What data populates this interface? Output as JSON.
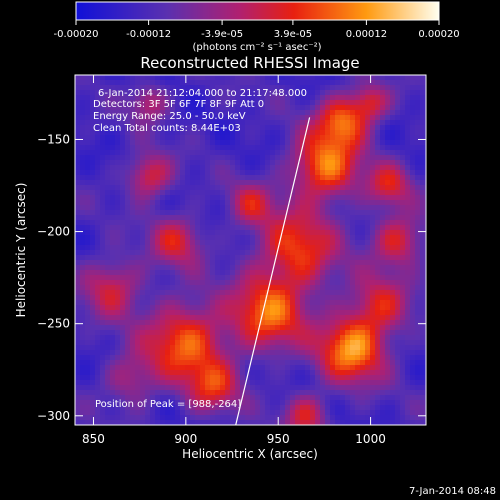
{
  "chart_data": {
    "type": "heatmap",
    "title": "Reconstructed RHESSI Image",
    "xlabel": "Heliocentric X (arcsec)",
    "ylabel": "Heliocentric Y (arcsec)",
    "xlim": [
      840,
      1030
    ],
    "ylim": [
      -305,
      -115
    ],
    "x_ticks": [
      850,
      900,
      950,
      1000
    ],
    "y_ticks": [
      -150,
      -200,
      -250,
      -300
    ],
    "colorbar": {
      "range": [
        -0.0002,
        0.0002
      ],
      "tick_values": [
        -0.0002,
        -0.00012,
        -3.9e-05,
        3.9e-05,
        0.00012,
        0.0002
      ],
      "tick_labels": [
        "-0.00020",
        "-0.00012",
        "-3.9e-05",
        "3.9e-05",
        "0.00012",
        "0.00020"
      ],
      "units_label": "(photons cm⁻² s⁻¹ asec⁻²)",
      "colormap": "blue-purple-red-yellow-white"
    },
    "annotations": {
      "time_range": "6-Jan-2014 21:12:04.000 to 21:17:48.000",
      "detectors": "Detectors: 3F 5F 6F 7F 8F 9F  Att 0",
      "energy": "Energy Range: 25.0 - 50.0 keV",
      "method": "Clean    Total counts: 8.44E+03",
      "peak": "Position of Peak = [988,-264]"
    },
    "limb_line": {
      "x": [
        927,
        967
      ],
      "y": [
        -305,
        -138
      ]
    },
    "footer_date": "7-Jan-2014 08:48"
  }
}
